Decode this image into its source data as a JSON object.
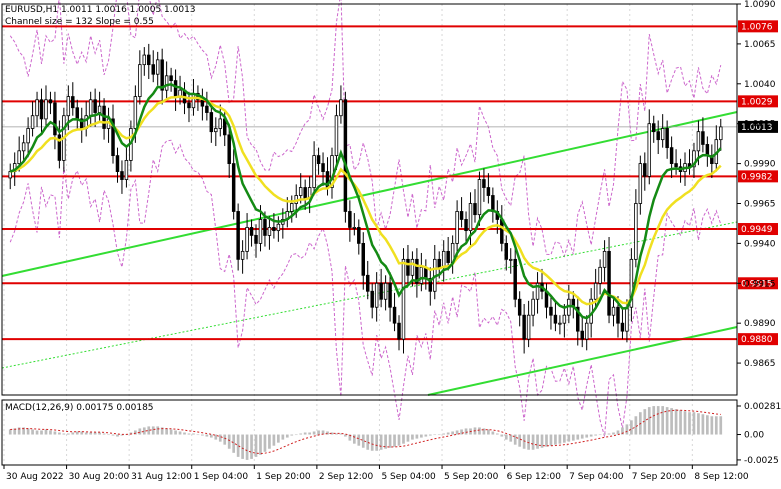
{
  "header": {
    "symbol_line": "EURUSD,H1  1.0011 1.0016 1.0005 1.0013",
    "channel_line": "Channel size = 132 Slope = 0.55"
  },
  "colors": {
    "candle": "#000000",
    "sr_line": "#e00000",
    "label_bg": "#e00000",
    "ma_yellow": "#f0e020",
    "ma_green": "#148a14",
    "channel": "#33dd33",
    "bands": "#cc66cc",
    "macd_hist": "#bdbdbd",
    "macd_signal": "#d02020"
  },
  "chart_data": [
    {
      "type": "candlestick",
      "title": "EURUSD,H1",
      "ohlc_last": {
        "open": 1.0011,
        "high": 1.0016,
        "low": 1.0005,
        "close": 1.0013
      },
      "ylim": [
        0.9845,
        1.009
      ],
      "y_ticks": [
        "1.0090",
        "1.0065",
        "1.0040",
        "1.0015",
        "0.9990",
        "0.9965",
        "0.9940",
        "0.9915",
        "0.9890",
        "0.9865"
      ],
      "x_labels": [
        "30 Aug 2022",
        "30 Aug 20:00",
        "31 Aug 12:00",
        "1 Sep 04:00",
        "1 Sep 20:00",
        "2 Sep 12:00",
        "5 Sep 04:00",
        "5 Sep 20:00",
        "6 Sep 12:00",
        "7 Sep 04:00",
        "7 Sep 20:00",
        "8 Sep 12:00"
      ],
      "levels": [
        1.0076,
        1.0029,
        0.9982,
        0.9949,
        0.9915,
        0.988
      ],
      "level_labels": [
        "1.0076",
        "1.0029",
        "0.9982",
        "0.9949",
        "0.9915",
        "0.9880"
      ],
      "current_price": "1.0013",
      "close_path": [
        0.9985,
        0.999,
        0.9998,
        1.0003,
        1.0012,
        1.002,
        1.003,
        1.0018,
        1.003,
        1.0028,
        1.0008,
        0.9992,
        1.002,
        1.0032,
        1.0025,
        1.0018,
        1.0012,
        1.002,
        1.003,
        1.0022,
        1.0026,
        1.0012,
        1.0018,
        0.9995,
        0.9985,
        0.998,
        0.9992,
        1.0012,
        1.0032,
        1.0052,
        1.0058,
        1.0052,
        1.0046,
        1.0055,
        1.0036,
        1.0045,
        1.0042,
        1.0032,
        1.0036,
        1.0028,
        1.0025,
        1.0034,
        1.003,
        1.0026,
        1.0022,
        1.001,
        1.0012,
        1.0018,
        1.0008,
        0.999,
        0.996,
        0.993,
        0.9935,
        0.995,
        0.9945,
        0.994,
        0.9955,
        0.9945,
        0.995,
        0.9948,
        0.9952,
        0.9955,
        0.996,
        0.9965,
        0.997,
        0.9975,
        0.9968,
        0.9975,
        0.9995,
        0.999,
        0.9985,
        0.9975,
        0.9995,
        1.002,
        1.003,
        0.996,
        0.995,
        0.995,
        0.994,
        0.992,
        0.991,
        0.99,
        0.9915,
        0.9905,
        0.9915,
        0.99,
        0.989,
        0.988,
        0.993,
        0.992,
        0.993,
        0.9915,
        0.9925,
        0.9918,
        0.991,
        0.993,
        0.9925,
        0.9935,
        0.9928,
        0.994,
        0.996,
        0.9955,
        0.9948,
        0.9965,
        0.9958,
        0.998,
        0.9975,
        0.997,
        0.996,
        0.9955,
        0.994,
        0.993,
        0.993,
        0.9905,
        0.9895,
        0.988,
        0.9895,
        0.9905,
        0.9915,
        0.991,
        0.99,
        0.9895,
        0.989,
        0.989,
        0.9895,
        0.9905,
        0.99,
        0.9885,
        0.988,
        0.989,
        0.9905,
        0.9915,
        0.9925,
        0.9935,
        0.9895,
        0.99,
        0.989,
        0.9885,
        0.99,
        0.993,
        0.9965,
        0.999,
        0.9982,
        1.0015,
        1.001,
        1.0005,
        1.0012,
        1.0,
        0.999,
        0.9988,
        0.9985,
        0.999,
        0.9988,
        0.9998,
        1.001,
        1.0002,
        0.9995,
        0.999,
        1.0005,
        1.0013
      ],
      "bollinger_envelope_offset": 0.0032
    },
    {
      "type": "bar",
      "title": "MACD(12,26,9)",
      "values_text": "0.00175 0.00185",
      "ylim": [
        -0.003,
        0.0034
      ],
      "y_ticks": [
        "0.00281",
        "0.00",
        "-0.0025"
      ],
      "series": [
        {
          "values": [
            0.0005,
            0.0006,
            0.0007,
            0.0007,
            0.0006,
            0.0005,
            0.0004,
            0.0004,
            0.0005,
            0.0004,
            0.0003,
            0.0002,
            0.0001,
            0.0001,
            0.0002,
            0.0003,
            0.0003,
            0.0002,
            0.0002,
            0.0002,
            0.0002,
            0.0001,
            0.0,
            -0.0001,
            -0.0002,
            -0.0001,
            0.0,
            0.0002,
            0.0004,
            0.0006,
            0.0007,
            0.0008,
            0.0008,
            0.0008,
            0.0007,
            0.0006,
            0.0005,
            0.0004,
            0.0003,
            0.0002,
            0.0001,
            0.0001,
            0.0,
            -0.0001,
            -0.0002,
            -0.0003,
            -0.0005,
            -0.0007,
            -0.001,
            -0.0014,
            -0.0018,
            -0.0022,
            -0.0024,
            -0.0025,
            -0.0024,
            -0.0022,
            -0.002,
            -0.0017,
            -0.0014,
            -0.0011,
            -0.0008,
            -0.0005,
            -0.0003,
            -0.0001,
            0.0,
            0.0001,
            0.0002,
            0.0002,
            0.0003,
            0.0004,
            0.0004,
            0.0003,
            0.0002,
            0.0001,
            0.0001,
            -0.0002,
            -0.0006,
            -0.0009,
            -0.0011,
            -0.0013,
            -0.0015,
            -0.0016,
            -0.0016,
            -0.0015,
            -0.0014,
            -0.0013,
            -0.0012,
            -0.0011,
            -0.0009,
            -0.0007,
            -0.0005,
            -0.0004,
            -0.0003,
            -0.0002,
            -0.0001,
            0.0,
            0.0,
            0.0001,
            0.0002,
            0.0003,
            0.0004,
            0.0005,
            0.0006,
            0.0006,
            0.0007,
            0.0007,
            0.0006,
            0.0005,
            0.0003,
            0.0001,
            -0.0002,
            -0.0005,
            -0.0007,
            -0.001,
            -0.0012,
            -0.0014,
            -0.0015,
            -0.0015,
            -0.0014,
            -0.0013,
            -0.0012,
            -0.0011,
            -0.001,
            -0.0009,
            -0.0008,
            -0.0007,
            -0.0006,
            -0.0005,
            -0.0004,
            -0.0003,
            -0.0002,
            -0.0001,
            0.0,
            0.0001,
            0.0001,
            0.0002,
            0.0004,
            0.0007,
            0.001,
            0.0014,
            0.0018,
            0.0022,
            0.0025,
            0.0027,
            0.0028,
            0.0028,
            0.0028,
            0.0027,
            0.0026,
            0.0025,
            0.0024,
            0.0023,
            0.0022,
            0.0022,
            0.0021,
            0.002,
            0.0019,
            0.0018,
            0.0018,
            0.0018
          ]
        }
      ]
    }
  ]
}
